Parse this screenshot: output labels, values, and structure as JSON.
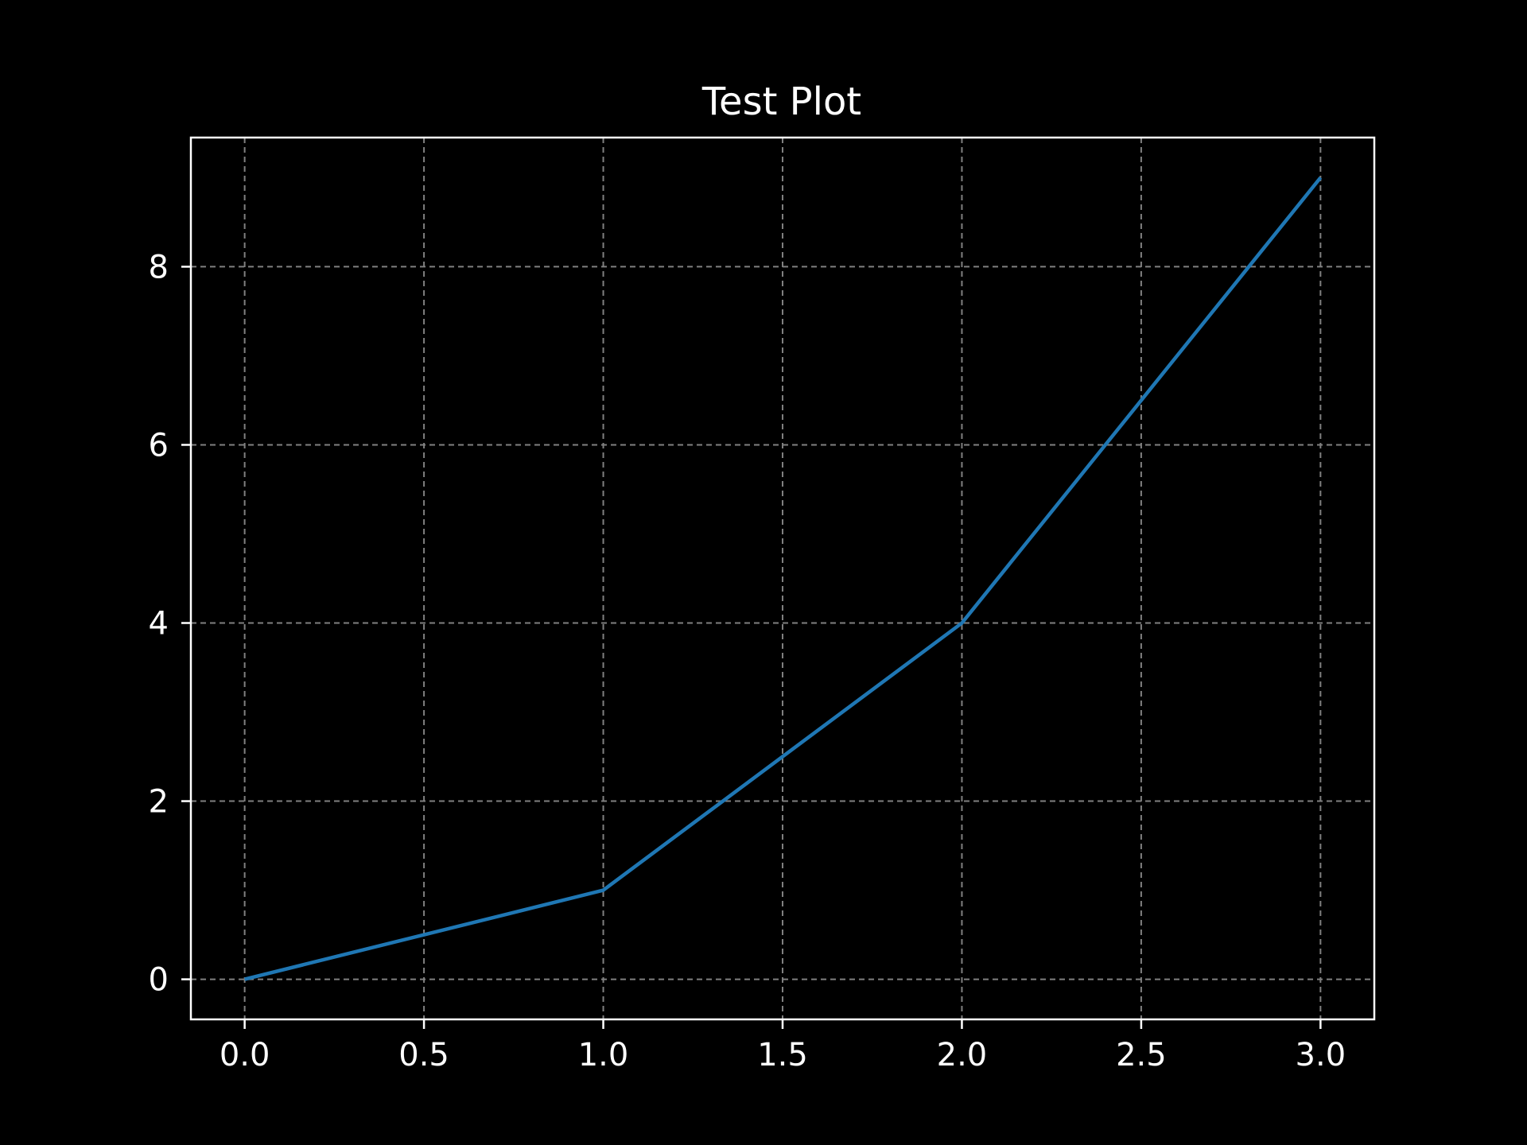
{
  "chart_data": {
    "type": "line",
    "title": "Test Plot",
    "xlabel": "",
    "ylabel": "",
    "x": [
      0,
      1,
      2,
      3
    ],
    "series": [
      {
        "values": [
          0,
          1,
          4,
          9
        ]
      }
    ],
    "xlim": [
      -0.15,
      3.15
    ],
    "ylim": [
      -0.45,
      9.45
    ],
    "x_ticks": [
      0.0,
      0.5,
      1.0,
      1.5,
      2.0,
      2.5,
      3.0
    ],
    "x_tick_labels": [
      "0.0",
      "0.5",
      "1.0",
      "1.5",
      "2.0",
      "2.5",
      "3.0"
    ],
    "y_ticks": [
      0,
      2,
      4,
      6,
      8
    ],
    "y_tick_labels": [
      "0",
      "2",
      "4",
      "6",
      "8"
    ],
    "grid": true,
    "grid_style": "dashed",
    "colors": {
      "background": "#000000",
      "axes": "#ffffff",
      "text": "#ffffff",
      "grid": "#808080",
      "line": "#1f77b4"
    }
  }
}
